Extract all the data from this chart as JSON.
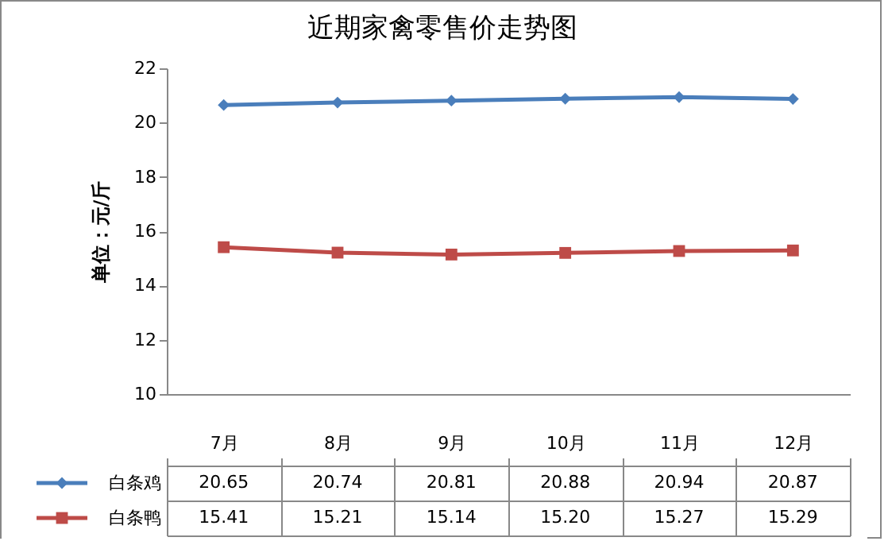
{
  "chart_data": {
    "type": "line",
    "title": "近期家禽零售价走势图",
    "ylabel": "单位：元/斤",
    "categories": [
      "7月",
      "8月",
      "9月",
      "10月",
      "11月",
      "12月"
    ],
    "series": [
      {
        "name": "白条鸡",
        "color": "#4a7ebb",
        "marker": "diamond",
        "values": [
          20.65,
          20.74,
          20.81,
          20.88,
          20.94,
          20.87
        ],
        "value_labels": [
          "20.65",
          "20.74",
          "20.81",
          "20.88",
          "20.94",
          "20.87"
        ]
      },
      {
        "name": "白条鸭",
        "color": "#be4b48",
        "marker": "square",
        "values": [
          15.41,
          15.21,
          15.14,
          15.2,
          15.27,
          15.29
        ],
        "value_labels": [
          "15.41",
          "15.21",
          "15.14",
          "15.20",
          "15.27",
          "15.29"
        ]
      }
    ],
    "ylim": [
      10,
      22
    ],
    "yticks": [
      10,
      12,
      14,
      16,
      18,
      20,
      22
    ],
    "grid": false,
    "legend": "bottom left"
  }
}
